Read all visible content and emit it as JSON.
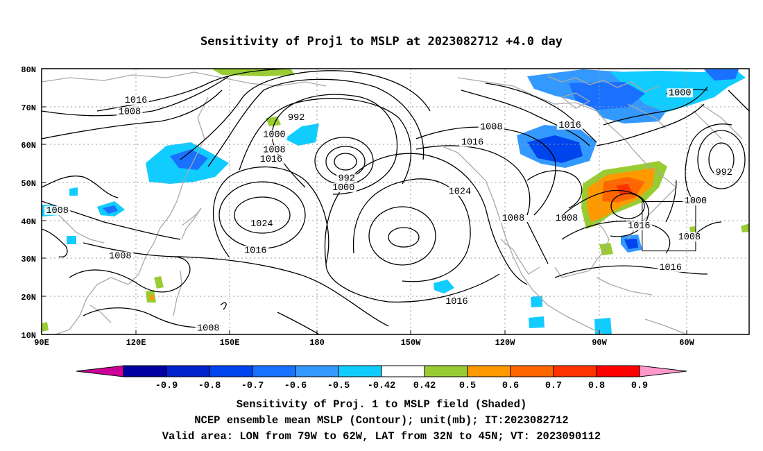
{
  "title": "Sensitivity of Proj1 to MSLP at 2023082712 +4.0 day",
  "map": {
    "lat_ticks": [
      "80N",
      "70N",
      "60N",
      "50N",
      "40N",
      "30N",
      "20N",
      "10N"
    ],
    "lon_ticks": [
      "90E",
      "120E",
      "150E",
      "180",
      "150W",
      "120W",
      "90W",
      "60W"
    ],
    "extent": {
      "lon_west": "90E",
      "lon_east": "45W",
      "lat_south": "10N",
      "lat_north": "80N"
    },
    "isobar_labels": [
      {
        "text": "1016",
        "lon": 120,
        "lat": 71
      },
      {
        "text": "1008",
        "lon": 118,
        "lat": 68
      },
      {
        "text": "1000",
        "lon": 164,
        "lat": 62
      },
      {
        "text": "1008",
        "lon": 164,
        "lat": 58
      },
      {
        "text": "1016",
        "lon": 163,
        "lat": 55.5
      },
      {
        "text": "992",
        "lon": 171,
        "lat": 66.5
      },
      {
        "text": "992",
        "lon": 187,
        "lat": 50.5
      },
      {
        "text": "1000",
        "lon": 186,
        "lat": 48
      },
      {
        "text": "1008",
        "lon": 233,
        "lat": 64
      },
      {
        "text": "1016",
        "lon": 227,
        "lat": 60
      },
      {
        "text": "1024",
        "lon": 160,
        "lat": 38.5
      },
      {
        "text": "1024",
        "lon": 223,
        "lat": 47
      },
      {
        "text": "1016",
        "lon": 158,
        "lat": 31.5
      },
      {
        "text": "1008",
        "lon": 115,
        "lat": 30
      },
      {
        "text": "1008",
        "lon": 95,
        "lat": 42
      },
      {
        "text": "1008",
        "lon": 240,
        "lat": 40
      },
      {
        "text": "1008",
        "lon": 257,
        "lat": 40
      },
      {
        "text": "1016",
        "lon": 222,
        "lat": 18
      },
      {
        "text": "1016",
        "lon": 258,
        "lat": 64.5
      },
      {
        "text": "1000",
        "lon": 293,
        "lat": 73
      },
      {
        "text": "992",
        "lon": 307,
        "lat": 52
      },
      {
        "text": "1000",
        "lon": 298,
        "lat": 44.5
      },
      {
        "text": "1016",
        "lon": 280,
        "lat": 38
      },
      {
        "text": "1008",
        "lon": 296,
        "lat": 35
      },
      {
        "text": "1016",
        "lon": 290,
        "lat": 27
      },
      {
        "text": "1008",
        "lon": 143,
        "lat": 11
      }
    ],
    "valid_area_box": {
      "lon_west": 281,
      "lon_east": 298,
      "lat_south": 32,
      "lat_north": 45
    }
  },
  "colorbar": {
    "tick_labels": [
      "-0.9",
      "-0.8",
      "-0.7",
      "-0.6",
      "-0.5",
      "-0.42",
      "0.42",
      "0.5",
      "0.6",
      "0.7",
      "0.8",
      "0.9"
    ],
    "colors": [
      "#0000a0",
      "#0022cc",
      "#0044ee",
      "#1a70ff",
      "#3399ff",
      "#11ccff",
      "#ffffff",
      "#99cc33",
      "#ff9900",
      "#ff6600",
      "#ff3300",
      "#ff0000"
    ],
    "low_end_color": "#cc0099",
    "high_end_color": "#ff99cc"
  },
  "captions": [
    "Sensitivity of Proj. 1 to MSLP field (Shaded)",
    "NCEP ensemble mean MSLP (Contour); unit(mb); IT:2023082712",
    "Valid area: LON from 79W to 62W, LAT from 32N to 45N; VT: 2023090112"
  ]
}
